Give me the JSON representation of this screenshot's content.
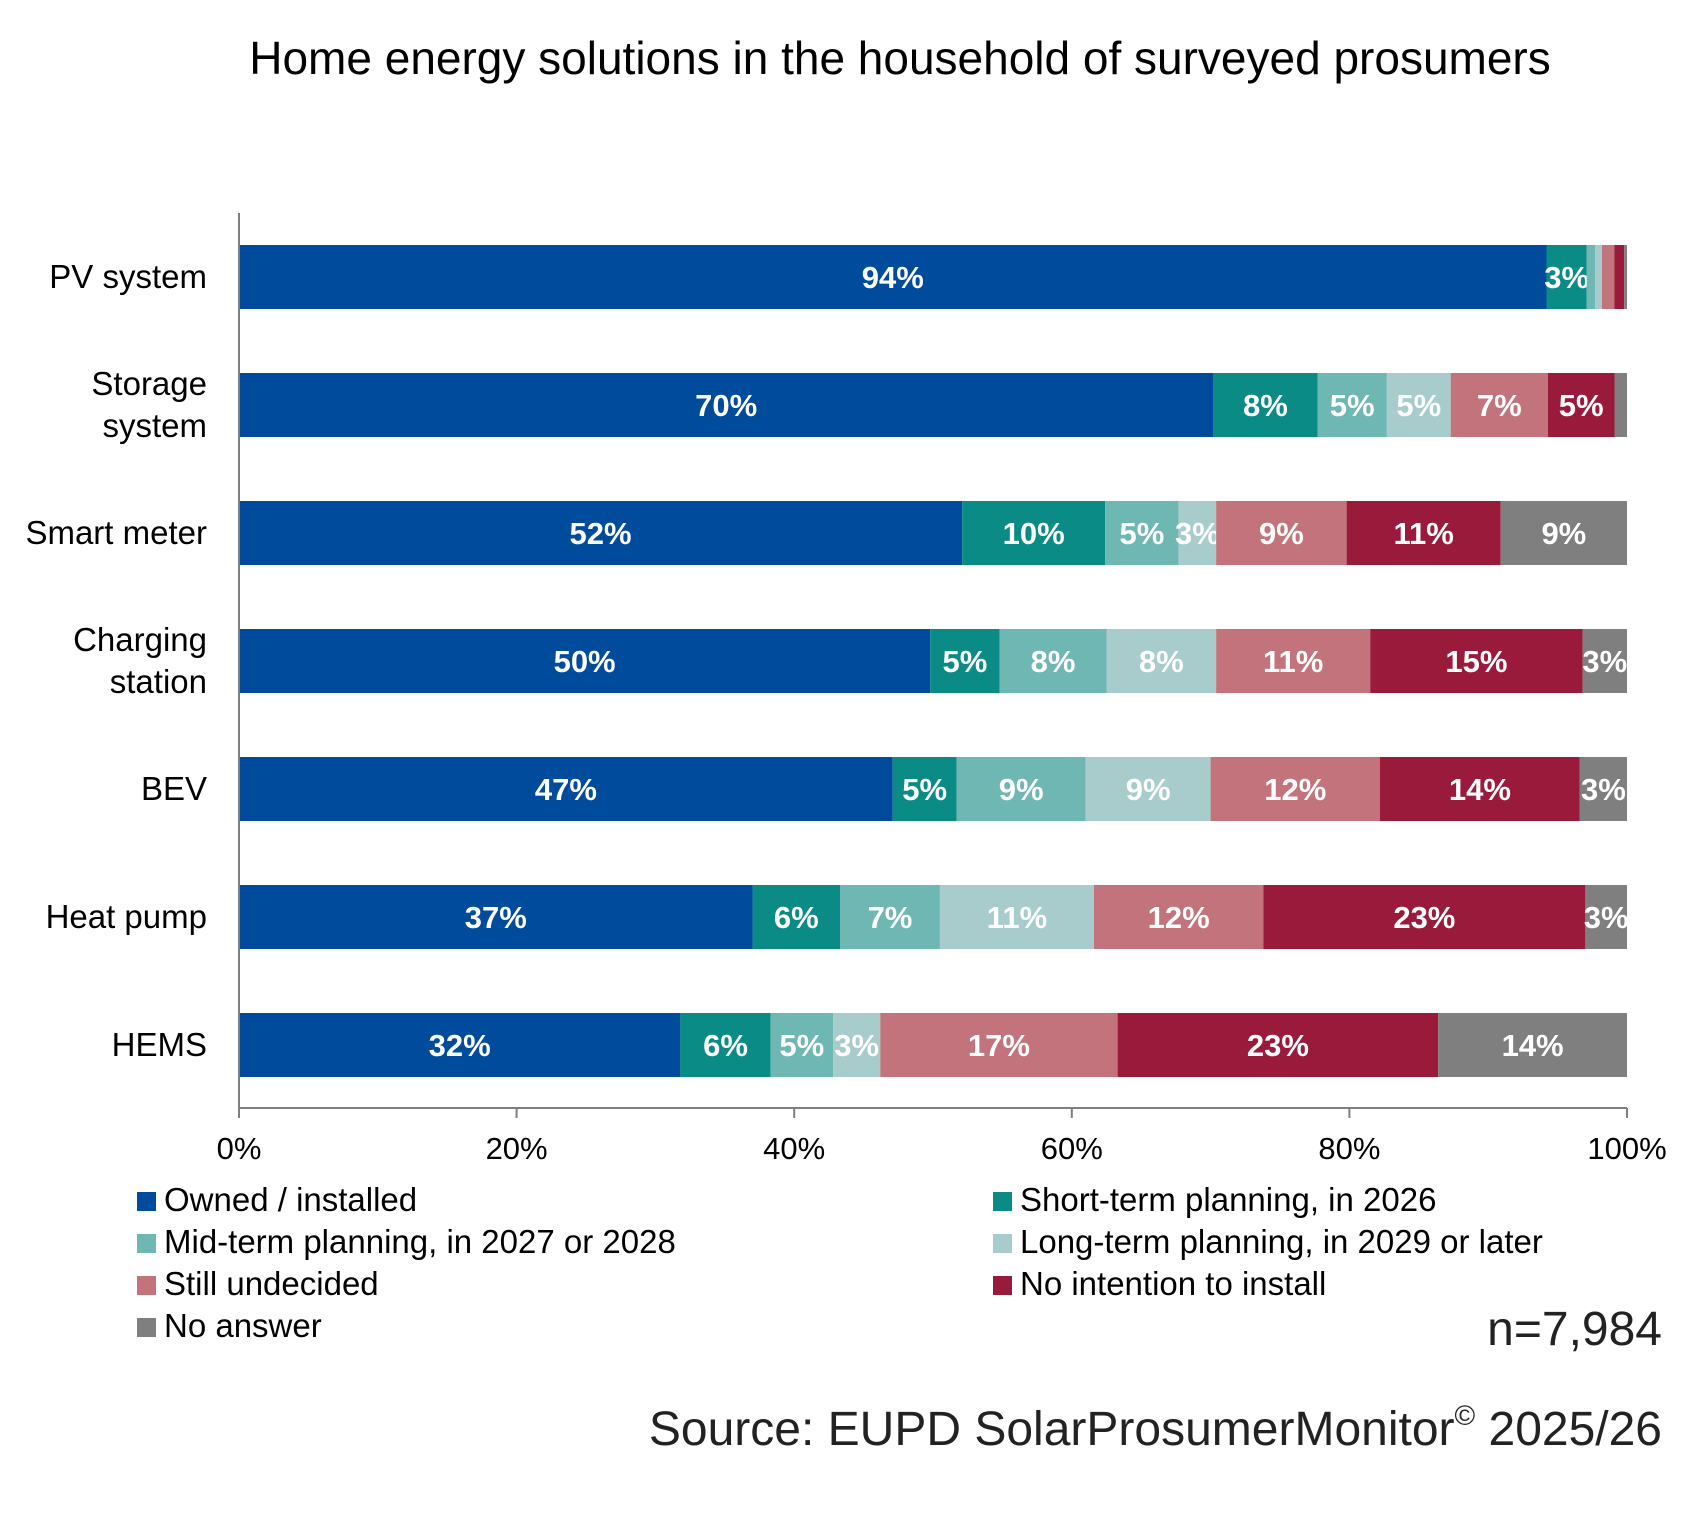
{
  "chart_data": {
    "type": "bar",
    "orientation": "horizontal",
    "stacked": true,
    "title": "Home energy solutions in the household of surveyed prosumers",
    "categories": [
      "PV system",
      "Storage system",
      "Smart meter",
      "Charging station",
      "BEV",
      "Heat pump",
      "HEMS"
    ],
    "category_lines": [
      [
        "PV system"
      ],
      [
        "Storage",
        "system"
      ],
      [
        "Smart meter"
      ],
      [
        "Charging",
        "station"
      ],
      [
        "BEV"
      ],
      [
        "Heat pump"
      ],
      [
        "HEMS"
      ]
    ],
    "xlim": [
      0,
      100
    ],
    "x_ticks": [
      "0%",
      "20%",
      "40%",
      "60%",
      "80%",
      "100%"
    ],
    "x_tick_values": [
      0,
      20,
      40,
      60,
      80,
      100
    ],
    "series": [
      {
        "name": "Owned / installed",
        "color": "#004b9c",
        "values": [
          94.2,
          70.2,
          52.1,
          49.8,
          47.1,
          37.0,
          31.8
        ]
      },
      {
        "name": "Short-term planning, in 2026",
        "color": "#0a8b86",
        "values": [
          2.9,
          7.5,
          10.3,
          5.0,
          4.6,
          6.3,
          6.5
        ]
      },
      {
        "name": "Mid-term planning, in 2027 or 2028",
        "color": "#6fb7b2",
        "values": [
          0.6,
          5.0,
          5.3,
          7.7,
          9.3,
          7.2,
          4.5
        ]
      },
      {
        "name": "Long-term planning, in 2029 or later",
        "color": "#a8cbcc",
        "values": [
          0.5,
          4.6,
          2.7,
          7.9,
          9.0,
          11.1,
          3.4
        ]
      },
      {
        "name": "Still undecided",
        "color": "#c2737b",
        "values": [
          0.9,
          7.0,
          9.4,
          11.1,
          12.2,
          12.2,
          17.1
        ]
      },
      {
        "name": "No intention to install",
        "color": "#9a1a3b",
        "values": [
          0.7,
          4.8,
          11.1,
          15.3,
          14.4,
          23.2,
          23.1
        ]
      },
      {
        "name": "No answer",
        "color": "#7f7f7f",
        "values": [
          0.2,
          0.9,
          9.1,
          3.2,
          3.4,
          3.0,
          13.6
        ]
      }
    ],
    "data_labels": [
      [
        "94%",
        "3%",
        "",
        "",
        "",
        "",
        ""
      ],
      [
        "70%",
        "8%",
        "5%",
        "5%",
        "7%",
        "5%",
        ""
      ],
      [
        "52%",
        "10%",
        "5%",
        "3%",
        "9%",
        "11%",
        "9%"
      ],
      [
        "50%",
        "5%",
        "8%",
        "8%",
        "11%",
        "15%",
        "3%"
      ],
      [
        "47%",
        "5%",
        "9%",
        "9%",
        "12%",
        "14%",
        "3%"
      ],
      [
        "37%",
        "6%",
        "7%",
        "11%",
        "12%",
        "23%",
        "3%"
      ],
      [
        "32%",
        "6%",
        "5%",
        "3%",
        "17%",
        "23%",
        "14%"
      ]
    ],
    "legend_position": "bottom",
    "sample_size": "n=7,984",
    "source": "Source: EUPD SolarProsumerMonitor",
    "source_mark": "©",
    "source_year": "2025/26"
  }
}
